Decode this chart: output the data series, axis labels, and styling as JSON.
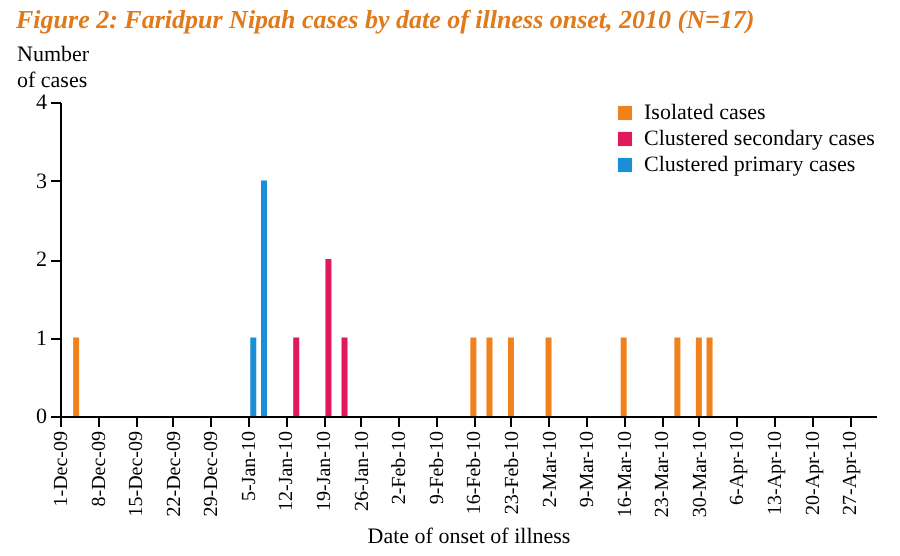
{
  "chart_data": {
    "type": "bar",
    "title": "Figure 2: Faridpur Nipah cases by date of illness onset, 2010 (N=17)",
    "xlabel": "Date of onset of illness",
    "ylabel": "Number of cases",
    "series": [
      {
        "name": "Isolated cases",
        "color": "#f0821e",
        "x": [
          "2009-12-04",
          "2010-02-16",
          "2010-02-19",
          "2010-02-23",
          "2010-03-02",
          "2010-03-16",
          "2010-03-26",
          "2010-03-30",
          "2010-04-01"
        ],
        "values": [
          1,
          1,
          1,
          1,
          1,
          1,
          1,
          1,
          1
        ]
      },
      {
        "name": "Clustered secondary cases",
        "color": "#e0195a",
        "x": [
          "2010-01-14",
          "2010-01-20",
          "2010-01-23"
        ],
        "values": [
          1,
          2,
          1
        ]
      },
      {
        "name": "Clustered primary cases",
        "color": "#1a8fd6",
        "x": [
          "2010-01-06",
          "2010-01-08"
        ],
        "values": [
          1,
          3
        ]
      }
    ],
    "xlim": [
      "2009-12-01",
      "2010-05-02"
    ],
    "xticks": [
      {
        "value": "2009-12-01",
        "label": "1-Dec-09"
      },
      {
        "value": "2009-12-08",
        "label": "8-Dec-09"
      },
      {
        "value": "2009-12-15",
        "label": "15-Dec-09"
      },
      {
        "value": "2009-12-22",
        "label": "22-Dec-09"
      },
      {
        "value": "2009-12-29",
        "label": "29-Dec-09"
      },
      {
        "value": "2010-01-05",
        "label": "5-Jan-10"
      },
      {
        "value": "2010-01-12",
        "label": "12-Jan-10"
      },
      {
        "value": "2010-01-19",
        "label": "19-Jan-10"
      },
      {
        "value": "2010-01-26",
        "label": "26-Jan-10"
      },
      {
        "value": "2010-02-02",
        "label": "2-Feb-10"
      },
      {
        "value": "2010-02-09",
        "label": "9-Feb-10"
      },
      {
        "value": "2010-02-16",
        "label": "16-Feb-10"
      },
      {
        "value": "2010-02-23",
        "label": "23-Feb-10"
      },
      {
        "value": "2010-03-02",
        "label": "2-Mar-10"
      },
      {
        "value": "2010-03-09",
        "label": "9-Mar-10"
      },
      {
        "value": "2010-03-16",
        "label": "16-Mar-10"
      },
      {
        "value": "2010-03-23",
        "label": "23-Mar-10"
      },
      {
        "value": "2010-03-30",
        "label": "30-Mar-10"
      },
      {
        "value": "2010-04-06",
        "label": "6-Apr-10"
      },
      {
        "value": "2010-04-13",
        "label": "13-Apr-10"
      },
      {
        "value": "2010-04-20",
        "label": "20-Apr-10"
      },
      {
        "value": "2010-04-27",
        "label": "27-Apr-10"
      }
    ],
    "ylim": [
      0,
      4
    ],
    "yticks": [
      0,
      1,
      2,
      3,
      4
    ],
    "grid": false,
    "legend": "top right"
  }
}
